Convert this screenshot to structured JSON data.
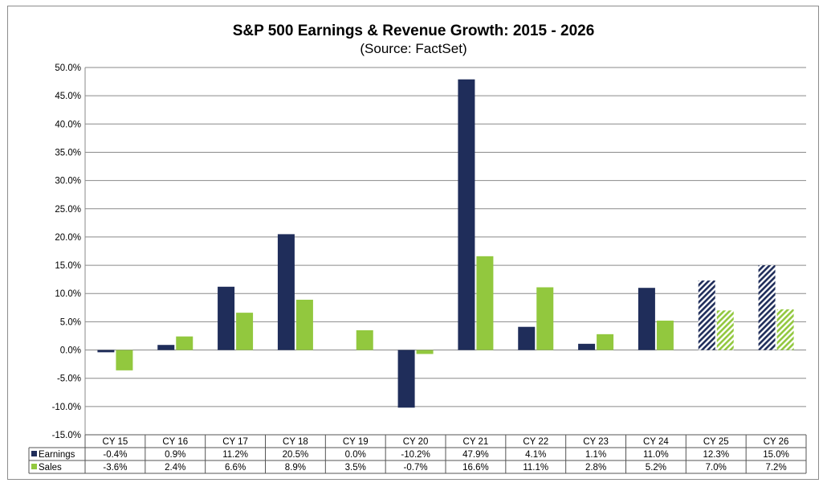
{
  "chart_data": {
    "type": "bar",
    "title": "S&P 500 Earnings & Revenue Growth: 2015 - 2026",
    "subtitle": "(Source: FactSet)",
    "categories": [
      "CY 15",
      "CY 16",
      "CY 17",
      "CY 18",
      "CY 19",
      "CY 20",
      "CY 21",
      "CY 22",
      "CY 23",
      "CY 24",
      "CY 25",
      "CY 26"
    ],
    "series": [
      {
        "name": "Earnings",
        "color": "#1f2d5a",
        "values": [
          -0.4,
          0.9,
          11.2,
          20.5,
          0.0,
          -10.2,
          47.9,
          4.1,
          1.1,
          11.0,
          12.3,
          15.0
        ],
        "labels": [
          "-0.4%",
          "0.9%",
          "11.2%",
          "20.5%",
          "0.0%",
          "-10.2%",
          "47.9%",
          "4.1%",
          "1.1%",
          "11.0%",
          "12.3%",
          "15.0%"
        ]
      },
      {
        "name": "Sales",
        "color": "#92c83e",
        "values": [
          -3.6,
          2.4,
          6.6,
          8.9,
          3.5,
          -0.7,
          16.6,
          11.1,
          2.8,
          5.2,
          7.0,
          7.2
        ],
        "labels": [
          "-3.6%",
          "2.4%",
          "6.6%",
          "8.9%",
          "3.5%",
          "-0.7%",
          "16.6%",
          "11.1%",
          "2.8%",
          "5.2%",
          "7.0%",
          "7.2%"
        ]
      }
    ],
    "estimate_categories": [
      "CY 25",
      "CY 26"
    ],
    "ylim": [
      -15,
      50
    ],
    "ytick_values": [
      50,
      45,
      40,
      35,
      30,
      25,
      20,
      15,
      10,
      5,
      0,
      -5,
      -10,
      -15
    ],
    "ytick_labels": [
      "50.0%",
      "45.0%",
      "40.0%",
      "35.0%",
      "30.0%",
      "25.0%",
      "20.0%",
      "15.0%",
      "10.0%",
      "5.0%",
      "0.0%",
      "-5.0%",
      "-10.0%",
      "-15.0%"
    ],
    "grid": true,
    "legend_placement": "data-table-below",
    "data_table": true
  }
}
